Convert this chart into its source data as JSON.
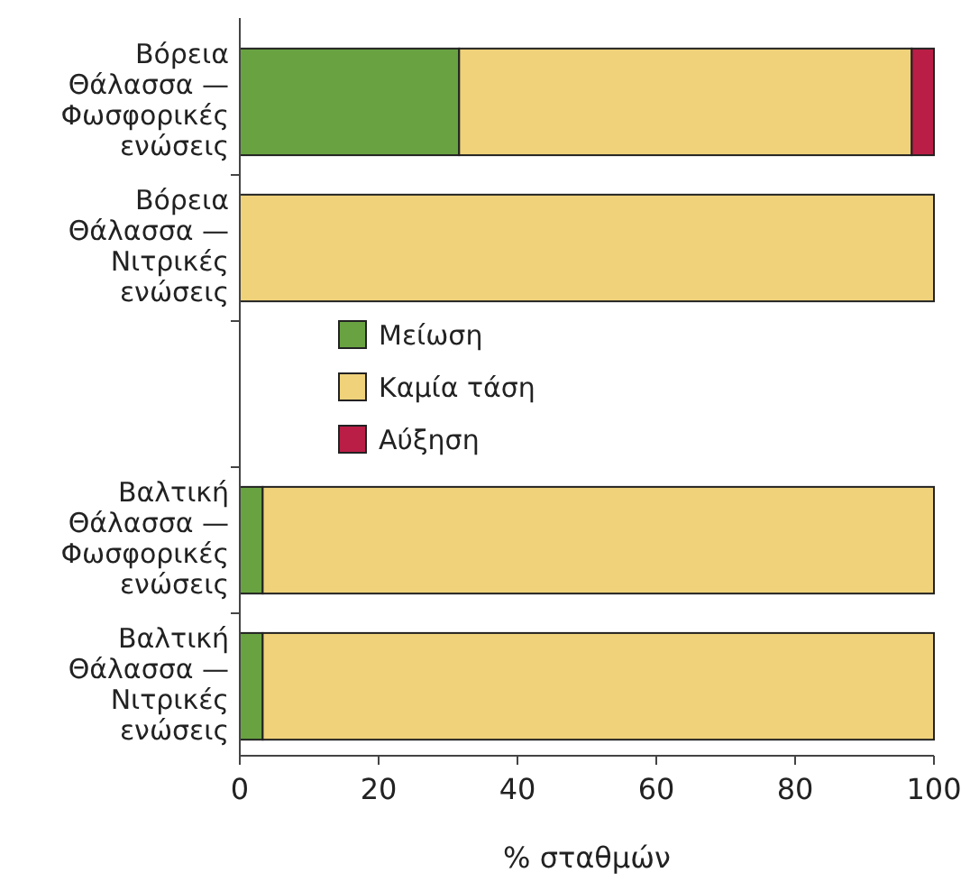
{
  "chart_data": {
    "type": "bar",
    "orientation": "horizontal",
    "stacked": true,
    "xlabel": "% σταθμών",
    "categories": [
      "Βόρεια Θάλασσα — Φωσφορικές ενώσεις",
      "Βόρεια Θάλασσα — Νιτρικές ενώσεις",
      null,
      "Βαλτική Θάλασσα — Φωσφορικές ενώσεις",
      "Βαλτική Θάλασσα — Νιτρικές ενώσεις"
    ],
    "series": [
      {
        "name": "Μείωση",
        "color": "#69a341",
        "values": [
          31.6,
          0,
          null,
          3.3,
          3.3
        ]
      },
      {
        "name": "Καμία τάση",
        "color": "#efd27a",
        "values": [
          65.2,
          100,
          null,
          96.7,
          96.7
        ]
      },
      {
        "name": "Αύξηση",
        "color": "#ba1e46",
        "values": [
          3.2,
          0,
          null,
          0,
          0
        ]
      }
    ],
    "xlim": [
      0,
      100
    ],
    "xticks": [
      0,
      20,
      40,
      60,
      80,
      100
    ],
    "legend": "left",
    "grid": false
  }
}
